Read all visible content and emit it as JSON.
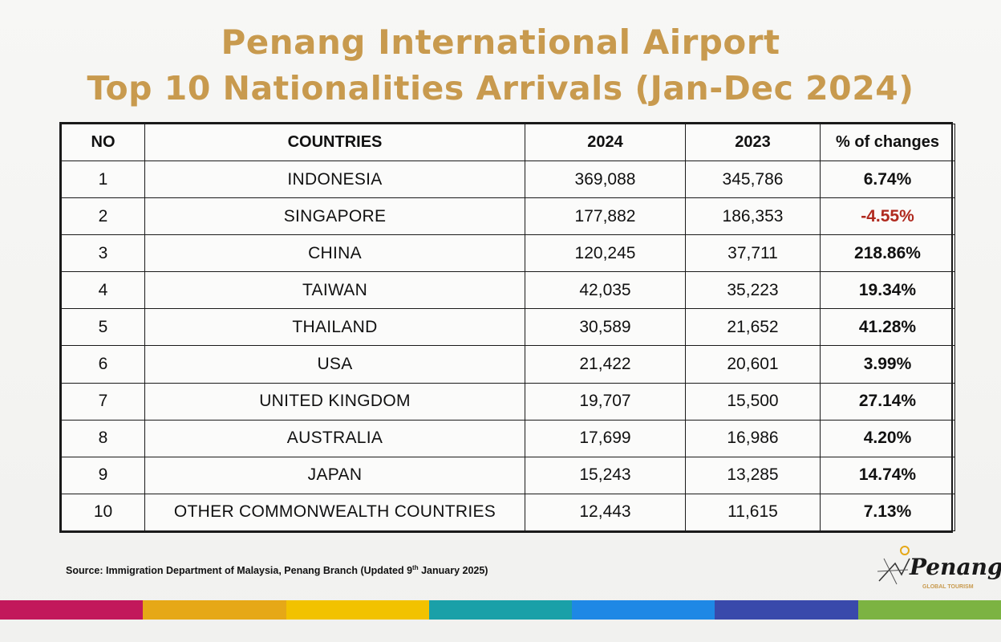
{
  "title": {
    "line1": "Penang International Airport",
    "line2": "Top 10 Nationalities Arrivals (Jan-Dec 2024)"
  },
  "table": {
    "headers": [
      "NO",
      "COUNTRIES",
      "2024",
      "2023",
      "% of changes"
    ],
    "rows": [
      {
        "no": "1",
        "country": "INDONESIA",
        "y2024": "369,088",
        "y2023": "345,786",
        "change": "6.74%"
      },
      {
        "no": "2",
        "country": "SINGAPORE",
        "y2024": "177,882",
        "y2023": "186,353",
        "change": "-4.55%"
      },
      {
        "no": "3",
        "country": "CHINA",
        "y2024": "120,245",
        "y2023": "37,711",
        "change": "218.86%"
      },
      {
        "no": "4",
        "country": "TAIWAN",
        "y2024": "42,035",
        "y2023": "35,223",
        "change": "19.34%"
      },
      {
        "no": "5",
        "country": "THAILAND",
        "y2024": "30,589",
        "y2023": "21,652",
        "change": "41.28%"
      },
      {
        "no": "6",
        "country": "USA",
        "y2024": "21,422",
        "y2023": "20,601",
        "change": "3.99%"
      },
      {
        "no": "7",
        "country": "UNITED KINGDOM",
        "y2024": "19,707",
        "y2023": "15,500",
        "change": "27.14%"
      },
      {
        "no": "8",
        "country": "AUSTRALIA",
        "y2024": "17,699",
        "y2023": "16,986",
        "change": "4.20%"
      },
      {
        "no": "9",
        "country": "JAPAN",
        "y2024": "15,243",
        "y2023": "13,285",
        "change": "14.74%"
      },
      {
        "no": "10",
        "country": "OTHER COMMONWEALTH COUNTRIES",
        "y2024": "12,443",
        "y2023": "11,615",
        "change": "7.13%"
      }
    ]
  },
  "source": {
    "prefix": "Source: Immigration Department of Malaysia, Penang Branch (Updated 9",
    "sup": "th",
    "suffix": "January 2025)"
  },
  "logo": {
    "word": "Penang",
    "sub": "GLOBAL TOURISM",
    "icon": "penang-logo-icon"
  },
  "colors": {
    "title": "#c89a4e",
    "negative": "#b02a1f",
    "stripe": [
      "#c2185b",
      "#e6a817",
      "#f2c200",
      "#1aa0a8",
      "#1e88e5",
      "#3949ab",
      "#7cb342"
    ]
  }
}
